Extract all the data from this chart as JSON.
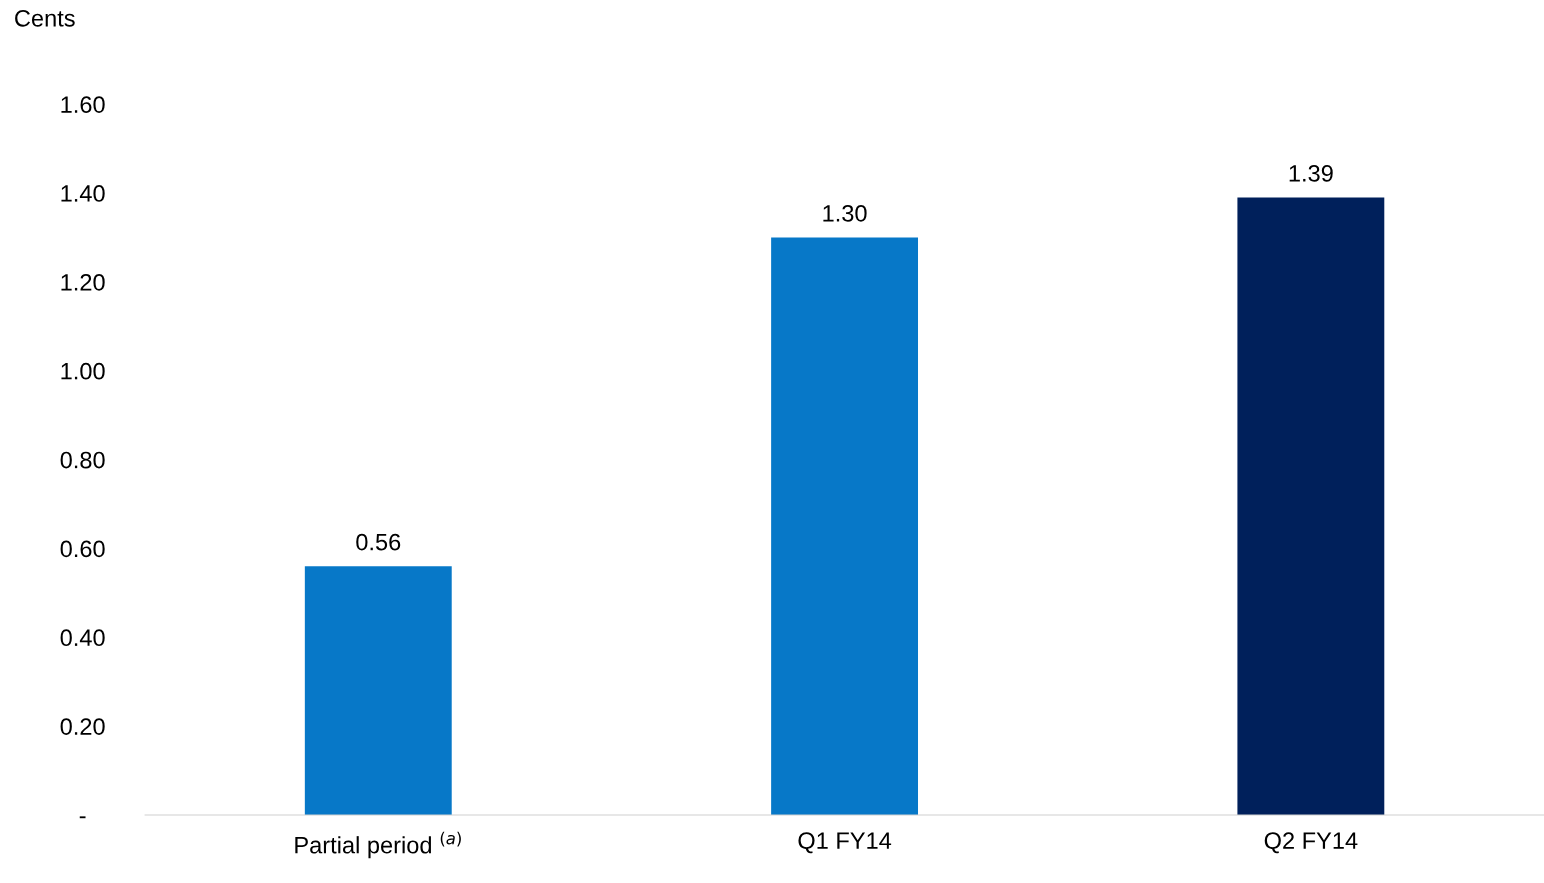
{
  "chart_data": {
    "type": "bar",
    "ylabel": "Cents",
    "categories": [
      "Partial period $^{(a)}$",
      "Q1 FY14",
      "Q2 FY14"
    ],
    "values": [
      0.56,
      1.3,
      1.39
    ],
    "colors": [
      "#0778c8",
      "#0778c8",
      "#00205b"
    ],
    "value_labels": [
      "0.56",
      "1.30",
      "1.39"
    ],
    "ylim": [
      0,
      1.6
    ],
    "yticks": [
      {
        "value": 0,
        "label": "-"
      },
      {
        "value": 0.2,
        "label": "0.20"
      },
      {
        "value": 0.4,
        "label": "0.40"
      },
      {
        "value": 0.6,
        "label": "0.60"
      },
      {
        "value": 0.8,
        "label": "0.80"
      },
      {
        "value": 1.0,
        "label": "1.00"
      },
      {
        "value": 1.2,
        "label": "1.20"
      },
      {
        "value": 1.4,
        "label": "1.40"
      },
      {
        "value": 1.6,
        "label": "1.60"
      }
    ],
    "grid": false,
    "legend": false
  }
}
